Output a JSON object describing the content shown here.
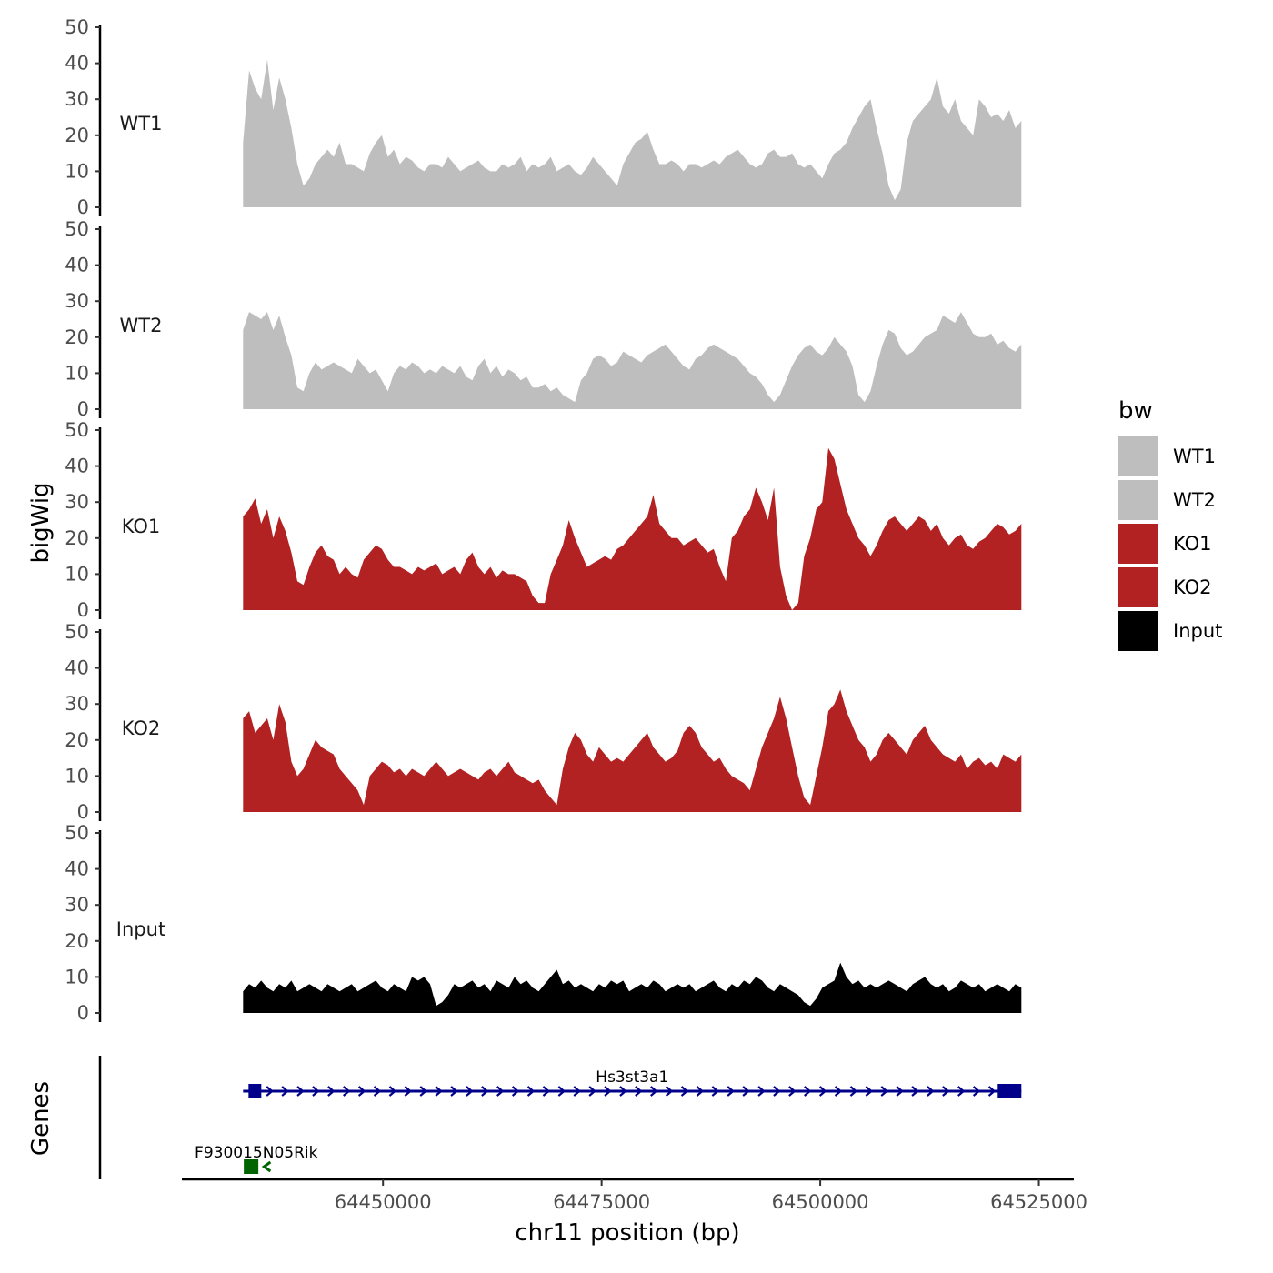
{
  "chart_data": {
    "type": "area",
    "title": "",
    "xlabel": "chr11 position (bp)",
    "ylabel": "bigWig",
    "genes_label": "Genes",
    "ylim": [
      0,
      50
    ],
    "yticks": [
      "0",
      "10",
      "20",
      "30",
      "40",
      "50"
    ],
    "xlim": [
      64427000,
      64529000
    ],
    "data_range": [
      64434000,
      64523000
    ],
    "xticks": [
      {
        "value": 64450000,
        "label": "64450000"
      },
      {
        "value": 64475000,
        "label": "64475000"
      },
      {
        "value": 64500000,
        "label": "64500000"
      },
      {
        "value": 64525000,
        "label": "64525000"
      }
    ],
    "series": [
      {
        "name": "WT1",
        "color": "#bebebe",
        "values": [
          18,
          38,
          33,
          30,
          41,
          27,
          36,
          30,
          22,
          12,
          6,
          8,
          12,
          14,
          16,
          14,
          18,
          12,
          12,
          11,
          10,
          15,
          18,
          20,
          14,
          16,
          12,
          14,
          13,
          11,
          10,
          12,
          12,
          11,
          14,
          12,
          10,
          11,
          12,
          13,
          11,
          10,
          10,
          12,
          11,
          12,
          14,
          10,
          12,
          11,
          12,
          14,
          10,
          11,
          12,
          10,
          9,
          11,
          14,
          12,
          10,
          8,
          6,
          12,
          15,
          18,
          19,
          21,
          16,
          12,
          12,
          13,
          12,
          10,
          12,
          12,
          11,
          12,
          13,
          12,
          14,
          15,
          16,
          14,
          12,
          11,
          12,
          15,
          16,
          14,
          14,
          15,
          12,
          11,
          12,
          10,
          8,
          12,
          15,
          16,
          18,
          22,
          25,
          28,
          30,
          22,
          15,
          6,
          2,
          5,
          18,
          24,
          26,
          28,
          30,
          36,
          28,
          26,
          30,
          24,
          22,
          20,
          30,
          28,
          25,
          26,
          24,
          27,
          22,
          24
        ]
      },
      {
        "name": "WT2",
        "color": "#bebebe",
        "values": [
          22,
          27,
          26,
          25,
          27,
          22,
          26,
          20,
          15,
          6,
          5,
          10,
          13,
          11,
          12,
          13,
          12,
          11,
          10,
          14,
          12,
          10,
          11,
          8,
          5,
          10,
          12,
          11,
          13,
          12,
          10,
          11,
          10,
          12,
          11,
          10,
          12,
          9,
          8,
          12,
          14,
          10,
          12,
          9,
          11,
          10,
          8,
          9,
          6,
          6,
          7,
          5,
          6,
          4,
          3,
          2,
          8,
          10,
          14,
          15,
          14,
          12,
          13,
          16,
          15,
          14,
          13,
          15,
          16,
          17,
          18,
          16,
          14,
          12,
          11,
          14,
          15,
          17,
          18,
          17,
          16,
          15,
          14,
          12,
          10,
          9,
          7,
          4,
          2,
          4,
          8,
          12,
          15,
          17,
          18,
          16,
          15,
          17,
          20,
          18,
          16,
          12,
          4,
          2,
          5,
          12,
          18,
          22,
          21,
          17,
          15,
          16,
          18,
          20,
          21,
          22,
          26,
          25,
          24,
          27,
          24,
          21,
          20,
          20,
          21,
          18,
          19,
          17,
          16,
          18
        ]
      },
      {
        "name": "KO1",
        "color": "#b22222",
        "values": [
          26,
          28,
          31,
          24,
          28,
          20,
          26,
          22,
          16,
          8,
          7,
          12,
          16,
          18,
          15,
          14,
          10,
          12,
          10,
          9,
          14,
          16,
          18,
          17,
          14,
          12,
          12,
          11,
          10,
          12,
          11,
          12,
          13,
          10,
          11,
          12,
          10,
          14,
          16,
          12,
          10,
          12,
          9,
          11,
          10,
          10,
          9,
          8,
          4,
          2,
          2,
          10,
          14,
          18,
          25,
          20,
          16,
          12,
          13,
          14,
          15,
          14,
          17,
          18,
          20,
          22,
          24,
          26,
          32,
          24,
          22,
          20,
          20,
          18,
          19,
          20,
          18,
          16,
          17,
          12,
          8,
          20,
          22,
          26,
          28,
          34,
          30,
          25,
          34,
          12,
          4,
          0,
          2,
          15,
          20,
          28,
          30,
          45,
          42,
          35,
          28,
          24,
          20,
          18,
          15,
          18,
          22,
          25,
          26,
          24,
          22,
          24,
          26,
          25,
          22,
          24,
          20,
          18,
          20,
          21,
          18,
          17,
          19,
          20,
          22,
          24,
          23,
          21,
          22,
          24
        ]
      },
      {
        "name": "KO2",
        "color": "#b22222",
        "values": [
          26,
          28,
          22,
          24,
          26,
          20,
          30,
          25,
          14,
          10,
          12,
          16,
          20,
          18,
          17,
          16,
          12,
          10,
          8,
          6,
          2,
          10,
          12,
          14,
          13,
          11,
          12,
          10,
          12,
          11,
          10,
          12,
          14,
          12,
          10,
          11,
          12,
          11,
          10,
          9,
          11,
          12,
          10,
          12,
          14,
          11,
          10,
          9,
          8,
          9,
          6,
          4,
          2,
          12,
          18,
          22,
          20,
          16,
          14,
          18,
          16,
          14,
          15,
          14,
          16,
          18,
          20,
          22,
          18,
          16,
          14,
          15,
          17,
          22,
          24,
          22,
          18,
          16,
          14,
          15,
          12,
          10,
          9,
          8,
          6,
          12,
          18,
          22,
          26,
          32,
          26,
          18,
          10,
          4,
          2,
          10,
          18,
          28,
          30,
          34,
          28,
          24,
          20,
          18,
          14,
          16,
          20,
          22,
          20,
          18,
          16,
          20,
          22,
          24,
          20,
          18,
          16,
          15,
          14,
          16,
          12,
          14,
          15,
          13,
          14,
          12,
          16,
          15,
          14,
          16
        ]
      },
      {
        "name": "Input",
        "color": "#000000",
        "values": [
          6,
          8,
          7,
          9,
          7,
          6,
          8,
          7,
          9,
          6,
          7,
          8,
          7,
          6,
          8,
          7,
          6,
          7,
          8,
          6,
          7,
          8,
          9,
          7,
          6,
          8,
          7,
          6,
          10,
          9,
          10,
          8,
          2,
          3,
          5,
          8,
          7,
          8,
          9,
          7,
          8,
          6,
          9,
          8,
          7,
          10,
          8,
          9,
          7,
          6,
          8,
          10,
          12,
          8,
          9,
          7,
          8,
          7,
          6,
          8,
          7,
          9,
          8,
          9,
          6,
          7,
          8,
          7,
          9,
          8,
          6,
          7,
          8,
          7,
          8,
          6,
          7,
          8,
          9,
          7,
          6,
          8,
          7,
          9,
          8,
          10,
          9,
          7,
          6,
          8,
          7,
          6,
          5,
          3,
          2,
          4,
          7,
          8,
          9,
          14,
          10,
          8,
          9,
          7,
          8,
          7,
          8,
          9,
          8,
          7,
          6,
          8,
          9,
          10,
          8,
          7,
          8,
          6,
          7,
          9,
          8,
          7,
          8,
          6,
          7,
          8,
          7,
          6,
          8,
          7
        ]
      }
    ],
    "genes": [
      {
        "name": "Hs3st3a1",
        "start": 64434000,
        "end": 64523000,
        "strand": "+",
        "color": "#00008b"
      },
      {
        "name": "F930015N05Rik",
        "start": 64434500,
        "end": 64436500,
        "strand": "-",
        "color": "#006400"
      }
    ],
    "legend": {
      "title": "bw",
      "position": "right",
      "items": [
        {
          "label": "WT1",
          "color": "#bebebe"
        },
        {
          "label": "WT2",
          "color": "#bebebe"
        },
        {
          "label": "KO1",
          "color": "#b22222"
        },
        {
          "label": "KO2",
          "color": "#b22222"
        },
        {
          "label": "Input",
          "color": "#000000"
        }
      ]
    }
  }
}
